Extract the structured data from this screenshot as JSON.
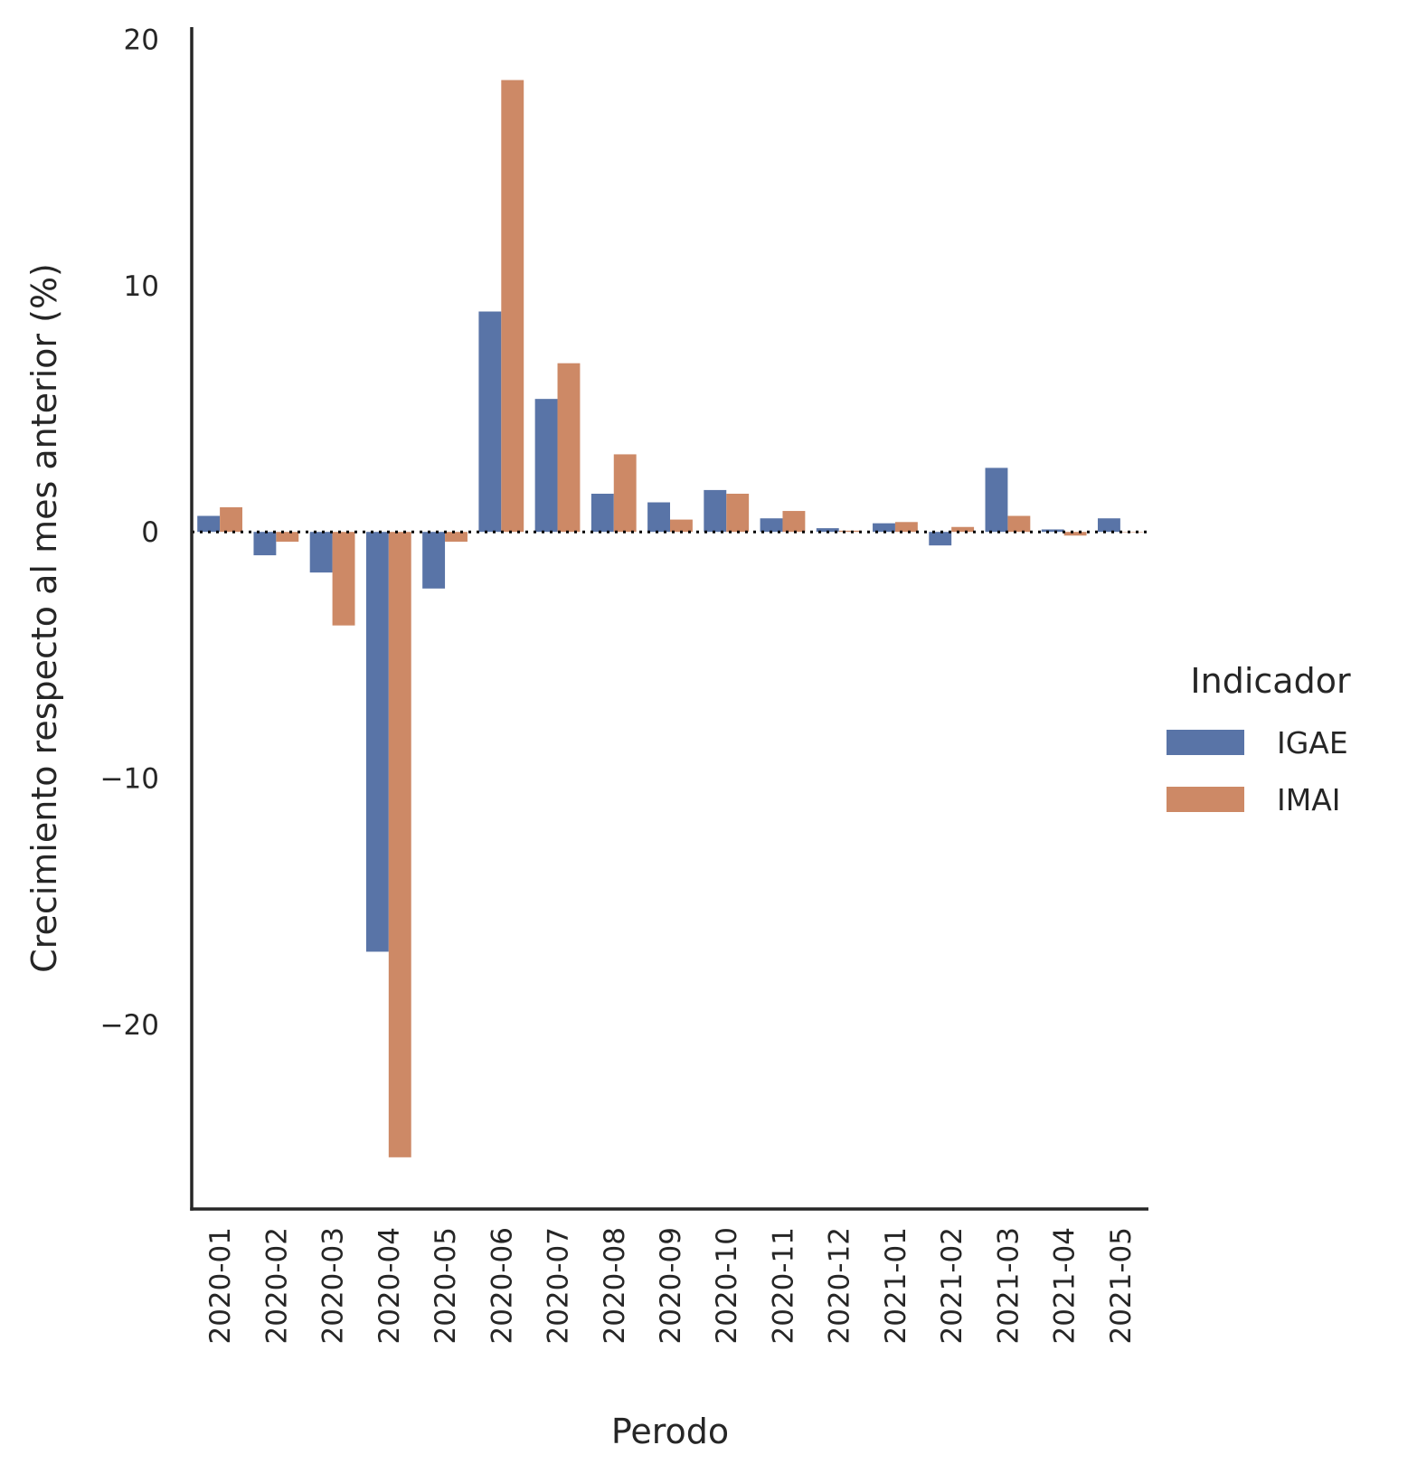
{
  "chart_data": {
    "type": "bar",
    "xlabel": "Perodo",
    "ylabel": "Crecimiento respecto al mes anterior (%)",
    "ylim": [
      -27.5,
      20.5
    ],
    "yticks": [
      20,
      10,
      0,
      -10,
      -20
    ],
    "ytick_labels": [
      "20",
      "10",
      "0",
      "−10",
      "−20"
    ],
    "categories": [
      "2020-01",
      "2020-02",
      "2020-03",
      "2020-04",
      "2020-05",
      "2020-06",
      "2020-07",
      "2020-08",
      "2020-09",
      "2020-10",
      "2020-11",
      "2020-12",
      "2021-01",
      "2021-02",
      "2021-03",
      "2021-04",
      "2021-05"
    ],
    "series": [
      {
        "name": "IGAE",
        "color": "#5974a7",
        "values": [
          0.65,
          -0.95,
          -1.65,
          -17.05,
          -2.3,
          8.95,
          5.4,
          1.55,
          1.2,
          1.7,
          0.55,
          0.15,
          0.35,
          -0.55,
          2.6,
          0.1,
          0.55
        ]
      },
      {
        "name": "IMAI",
        "color": "#cd8966",
        "values": [
          1.0,
          -0.4,
          -3.8,
          -25.4,
          -0.4,
          18.35,
          6.85,
          3.15,
          0.5,
          1.55,
          0.85,
          0.05,
          0.4,
          0.2,
          0.65,
          -0.15,
          0.0
        ]
      }
    ],
    "zero_line": "dotted",
    "grid": false,
    "legend": {
      "title": "Indicador",
      "placement": "right",
      "entries": [
        "IGAE",
        "IMAI"
      ]
    }
  }
}
